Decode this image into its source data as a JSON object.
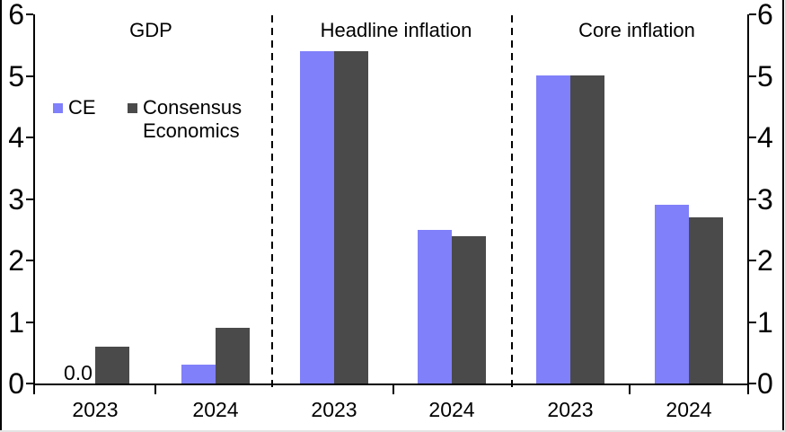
{
  "chart_data": {
    "type": "bar",
    "title": "",
    "ylabel": "",
    "xlabel": "",
    "ylim": [
      0,
      6
    ],
    "yticks": [
      0,
      1,
      2,
      3,
      4,
      5,
      6
    ],
    "axis_sides": [
      "left",
      "right"
    ],
    "grid": false,
    "legend_position": "upper-left-inside",
    "legend": [
      {
        "name": "CE",
        "color": "#8080fa"
      },
      {
        "name": "Consensus Economics",
        "color": "#4a4a4a"
      }
    ],
    "panels": [
      {
        "title": "GDP",
        "categories": [
          "2023",
          "2024"
        ],
        "series": [
          {
            "name": "CE",
            "values": [
              0.0,
              0.3
            ]
          },
          {
            "name": "Consensus Economics",
            "values": [
              0.6,
              0.9
            ]
          }
        ],
        "annotations": [
          {
            "text": "0.0",
            "category_index": 0,
            "series_index": 0
          }
        ]
      },
      {
        "title": "Headline inflation",
        "categories": [
          "2023",
          "2024"
        ],
        "series": [
          {
            "name": "CE",
            "values": [
              5.4,
              2.5
            ]
          },
          {
            "name": "Consensus Economics",
            "values": [
              5.4,
              2.4
            ]
          }
        ],
        "annotations": []
      },
      {
        "title": "Core inflation",
        "categories": [
          "2023",
          "2024"
        ],
        "series": [
          {
            "name": "CE",
            "values": [
              5.0,
              2.9
            ]
          },
          {
            "name": "Consensus Economics",
            "values": [
              5.0,
              2.7
            ]
          }
        ],
        "annotations": []
      }
    ],
    "colors": {
      "ce_bar": "#8080fa",
      "consensus_bar": "#4a4a4a",
      "axis": "#000000",
      "background": "#ffffff"
    }
  }
}
